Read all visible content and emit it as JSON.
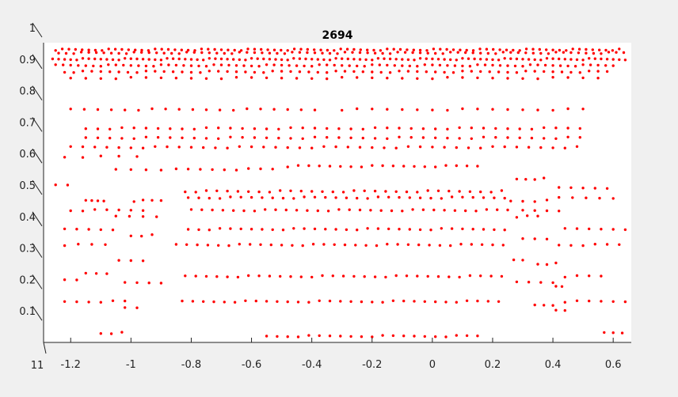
{
  "chart_data": {
    "type": "scatter",
    "title": "2694",
    "xlabel": "",
    "ylabel": "",
    "xlim": [
      -1.29,
      0.66
    ],
    "ylim": [
      0,
      1
    ],
    "xticks": [
      -1.2,
      -1,
      -0.8,
      -0.6,
      -0.4,
      -0.2,
      0,
      0.2,
      0.4,
      0.6
    ],
    "xtick_labels": [
      "-1.2",
      "-1",
      "-0.8",
      "-0.6",
      "-0.4",
      "-0.2",
      "0",
      "0.2",
      "0.4",
      "0.6"
    ],
    "yticks": [
      0.1,
      0.2,
      0.3,
      0.4,
      0.5,
      0.6,
      0.7,
      0.8,
      0.9,
      1
    ],
    "ytick_labels": [
      "0.1",
      "0.2",
      "0.3",
      "0.4",
      "0.5",
      "0.6",
      "0.7",
      "0.8",
      "0.9",
      "1"
    ],
    "corner_label": "11",
    "marker_color": "#ff0000",
    "background": "#ffffff",
    "grid": false,
    "rows": [
      {
        "y": 0.93,
        "x_start": -1.25,
        "x_end": 0.64,
        "step": 0.022
      },
      {
        "y": 0.92,
        "x_start": -1.24,
        "x_end": 0.64,
        "step": 0.025
      },
      {
        "y": 0.9,
        "x_start": -1.26,
        "x_end": 0.65,
        "step": 0.02
      },
      {
        "y": 0.88,
        "x_start": -1.25,
        "x_end": 0.62,
        "step": 0.025
      },
      {
        "y": 0.86,
        "x_start": -1.22,
        "x_end": 0.6,
        "step": 0.03
      },
      {
        "y": 0.84,
        "x_start": -1.2,
        "x_end": 0.55,
        "step": 0.05
      },
      {
        "y": 0.74,
        "x_start": -1.2,
        "x_end": -0.35,
        "step": 0.045
      },
      {
        "y": 0.74,
        "x_start": -0.3,
        "x_end": 0.5,
        "step": 0.05
      },
      {
        "y": 0.68,
        "x_start": -1.15,
        "x_end": 0.52,
        "step": 0.04
      },
      {
        "y": 0.65,
        "x_start": -1.15,
        "x_end": 0.5,
        "step": 0.04
      },
      {
        "y": 0.62,
        "x_start": -1.2,
        "x_end": 0.5,
        "step": 0.04
      },
      {
        "y": 0.59,
        "x_start": -1.22,
        "x_end": -0.95,
        "step": 0.06
      },
      {
        "y": 0.55,
        "x_start": -1.05,
        "x_end": -0.9,
        "step": 0.05
      },
      {
        "y": 0.55,
        "x_start": -0.85,
        "x_end": -0.5,
        "step": 0.04
      },
      {
        "y": 0.56,
        "x_start": -0.48,
        "x_end": 0.18,
        "step": 0.035
      },
      {
        "y": 0.52,
        "x_start": 0.28,
        "x_end": 0.37,
        "step": 0.03
      },
      {
        "y": 0.5,
        "x_start": -1.25,
        "x_end": -1.18,
        "step": 0.04
      },
      {
        "y": 0.49,
        "x_start": 0.42,
        "x_end": 0.6,
        "step": 0.04
      },
      {
        "y": 0.48,
        "x_start": -0.82,
        "x_end": 0.25,
        "step": 0.035
      },
      {
        "y": 0.46,
        "x_start": -0.81,
        "x_end": 0.27,
        "step": 0.035
      },
      {
        "y": 0.45,
        "x_start": -1.15,
        "x_end": -1.08,
        "step": 0.02
      },
      {
        "y": 0.45,
        "x_start": -0.99,
        "x_end": -0.9,
        "step": 0.03
      },
      {
        "y": 0.45,
        "x_start": 0.26,
        "x_end": 0.4,
        "step": 0.04
      },
      {
        "y": 0.46,
        "x_start": 0.42,
        "x_end": 0.62,
        "step": 0.045
      },
      {
        "y": 0.42,
        "x_start": -0.8,
        "x_end": 0.25,
        "step": 0.035
      },
      {
        "y": 0.42,
        "x_start": -1.2,
        "x_end": -0.95,
        "step": 0.04
      },
      {
        "y": 0.42,
        "x_start": 0.3,
        "x_end": 0.45,
        "step": 0.04
      },
      {
        "y": 0.4,
        "x_start": -1.05,
        "x_end": -0.9,
        "step": 0.045
      },
      {
        "y": 0.4,
        "x_start": 0.28,
        "x_end": 0.38,
        "step": 0.035
      },
      {
        "y": 0.36,
        "x_start": -0.81,
        "x_end": 0.25,
        "step": 0.035
      },
      {
        "y": 0.36,
        "x_start": -1.22,
        "x_end": -1.05,
        "step": 0.04
      },
      {
        "y": 0.36,
        "x_start": 0.44,
        "x_end": 0.65,
        "step": 0.04
      },
      {
        "y": 0.34,
        "x_start": -1.0,
        "x_end": -0.92,
        "step": 0.035
      },
      {
        "y": 0.33,
        "x_start": 0.3,
        "x_end": 0.38,
        "step": 0.04
      },
      {
        "y": 0.31,
        "x_start": -0.85,
        "x_end": 0.25,
        "step": 0.035
      },
      {
        "y": 0.31,
        "x_start": -1.22,
        "x_end": -1.08,
        "step": 0.045
      },
      {
        "y": 0.31,
        "x_start": 0.42,
        "x_end": 0.62,
        "step": 0.04
      },
      {
        "y": 0.26,
        "x_start": -1.04,
        "x_end": -0.96,
        "step": 0.04
      },
      {
        "y": 0.26,
        "x_start": 0.27,
        "x_end": 0.31,
        "step": 0.03
      },
      {
        "y": 0.25,
        "x_start": 0.35,
        "x_end": 0.41,
        "step": 0.03
      },
      {
        "y": 0.22,
        "x_start": -1.15,
        "x_end": -1.05,
        "step": 0.035
      },
      {
        "y": 0.21,
        "x_start": -0.82,
        "x_end": 0.25,
        "step": 0.035
      },
      {
        "y": 0.21,
        "x_start": 0.44,
        "x_end": 0.57,
        "step": 0.04
      },
      {
        "y": 0.2,
        "x_start": -1.22,
        "x_end": -1.18,
        "step": 0.04
      },
      {
        "y": 0.19,
        "x_start": -1.02,
        "x_end": -0.9,
        "step": 0.04
      },
      {
        "y": 0.19,
        "x_start": 0.28,
        "x_end": 0.4,
        "step": 0.04
      },
      {
        "y": 0.18,
        "x_start": 0.41,
        "x_end": 0.44,
        "step": 0.02
      },
      {
        "y": 0.13,
        "x_start": -1.22,
        "x_end": -1.02,
        "step": 0.04
      },
      {
        "y": 0.13,
        "x_start": -0.83,
        "x_end": 0.25,
        "step": 0.035
      },
      {
        "y": 0.13,
        "x_start": 0.44,
        "x_end": 0.65,
        "step": 0.04
      },
      {
        "y": 0.12,
        "x_start": 0.34,
        "x_end": 0.4,
        "step": 0.03
      },
      {
        "y": 0.11,
        "x_start": -1.02,
        "x_end": -0.96,
        "step": 0.04
      },
      {
        "y": 0.1,
        "x_start": 0.41,
        "x_end": 0.46,
        "step": 0.03
      },
      {
        "y": 0.03,
        "x_start": -1.1,
        "x_end": -1.0,
        "step": 0.035
      },
      {
        "y": 0.02,
        "x_start": -0.55,
        "x_end": 0.17,
        "step": 0.035
      },
      {
        "y": 0.03,
        "x_start": 0.57,
        "x_end": 0.63,
        "step": 0.03
      }
    ]
  }
}
